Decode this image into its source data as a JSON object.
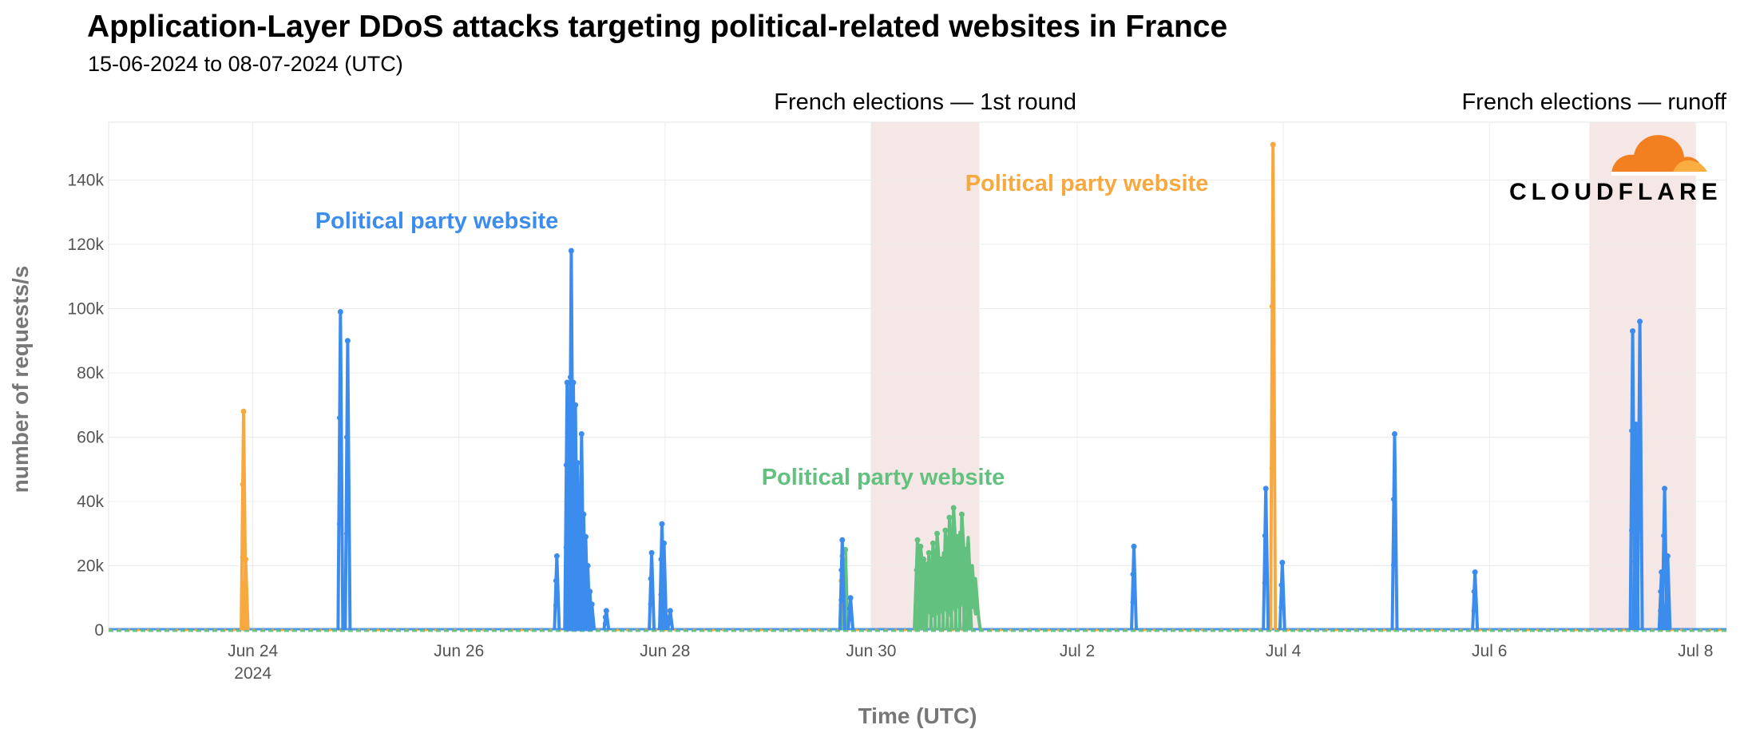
{
  "chart_data": {
    "type": "line",
    "title": "Application-Layer DDoS attacks targeting political-related websites in France",
    "subtitle": "15-06-2024 to 08-07-2024 (UTC)",
    "xlabel": "Time (UTC)",
    "ylabel": "number of requests/s",
    "x_unit": "days since Jun 23 2024 00:00 UTC",
    "xlim": [
      22.6,
      38.3
    ],
    "ylim": [
      0,
      158000
    ],
    "y_ticks": [
      {
        "value": 0,
        "label": "0"
      },
      {
        "value": 20000,
        "label": "20k"
      },
      {
        "value": 40000,
        "label": "40k"
      },
      {
        "value": 60000,
        "label": "60k"
      },
      {
        "value": 80000,
        "label": "80k"
      },
      {
        "value": 100000,
        "label": "100k"
      },
      {
        "value": 120000,
        "label": "120k"
      },
      {
        "value": 140000,
        "label": "140k"
      }
    ],
    "x_ticks": [
      {
        "value": 24,
        "label": "Jun 24",
        "sublabel": "2024"
      },
      {
        "value": 26,
        "label": "Jun 26",
        "sublabel": ""
      },
      {
        "value": 28,
        "label": "Jun 28",
        "sublabel": ""
      },
      {
        "value": 30,
        "label": "Jun 30",
        "sublabel": ""
      },
      {
        "value": 32,
        "label": "Jul 2",
        "sublabel": ""
      },
      {
        "value": 34,
        "label": "Jul 4",
        "sublabel": ""
      },
      {
        "value": 36,
        "label": "Jul 6",
        "sublabel": ""
      },
      {
        "value": 38,
        "label": "Jul 8",
        "sublabel": ""
      }
    ],
    "shaded_periods": [
      {
        "name": "French elections — 1st round",
        "start": 30.0,
        "end": 31.05
      },
      {
        "name": "French elections — runoff",
        "start": 36.97,
        "end": 38.0
      }
    ],
    "series": [
      {
        "name": "Political party website (blue)",
        "label": "Political party website",
        "color": "#3b8ced",
        "spikes": [
          [
            24.85,
            99000
          ],
          [
            24.92,
            90000
          ],
          [
            26.95,
            23000
          ],
          [
            27.05,
            77000
          ],
          [
            27.07,
            64000
          ],
          [
            27.09,
            118000
          ],
          [
            27.11,
            77000
          ],
          [
            27.13,
            70000
          ],
          [
            27.15,
            52000
          ],
          [
            27.17,
            44000
          ],
          [
            27.19,
            61000
          ],
          [
            27.21,
            36000
          ],
          [
            27.23,
            29000
          ],
          [
            27.25,
            20000
          ],
          [
            27.27,
            12000
          ],
          [
            27.29,
            8000
          ],
          [
            27.43,
            6000
          ],
          [
            27.87,
            24000
          ],
          [
            27.97,
            33000
          ],
          [
            27.99,
            27000
          ],
          [
            28.05,
            6000
          ],
          [
            29.72,
            28000
          ],
          [
            29.8,
            10000
          ],
          [
            32.55,
            26000
          ],
          [
            33.83,
            44000
          ],
          [
            33.99,
            21000
          ],
          [
            35.08,
            61000
          ],
          [
            35.86,
            18000
          ],
          [
            37.39,
            93000
          ],
          [
            37.42,
            64000
          ],
          [
            37.46,
            96000
          ],
          [
            37.67,
            18000
          ],
          [
            37.7,
            44000
          ],
          [
            37.73,
            23000
          ]
        ]
      },
      {
        "name": "Political party website (orange)",
        "label": "Political party website",
        "color": "#f7a93f",
        "spikes": [
          [
            23.91,
            68000
          ],
          [
            23.93,
            22000
          ],
          [
            29.72,
            23000
          ],
          [
            33.9,
            151000
          ]
        ]
      },
      {
        "name": "Political party website (green)",
        "label": "Political party website",
        "color": "#62c17f",
        "spikes": [
          [
            29.75,
            25000
          ],
          [
            30.45,
            28000
          ],
          [
            30.48,
            26000
          ],
          [
            30.51,
            22000
          ],
          [
            30.56,
            24000
          ],
          [
            30.6,
            27000
          ],
          [
            30.64,
            30000
          ],
          [
            30.68,
            22000
          ],
          [
            30.72,
            31000
          ],
          [
            30.76,
            35000
          ],
          [
            30.8,
            38000
          ],
          [
            30.84,
            29000
          ],
          [
            30.88,
            36000
          ],
          [
            30.92,
            25000
          ],
          [
            30.95,
            20000
          ]
        ]
      }
    ]
  },
  "branding": {
    "logo_text": "CLOUDFLARE",
    "logo_color": "#f38020"
  }
}
